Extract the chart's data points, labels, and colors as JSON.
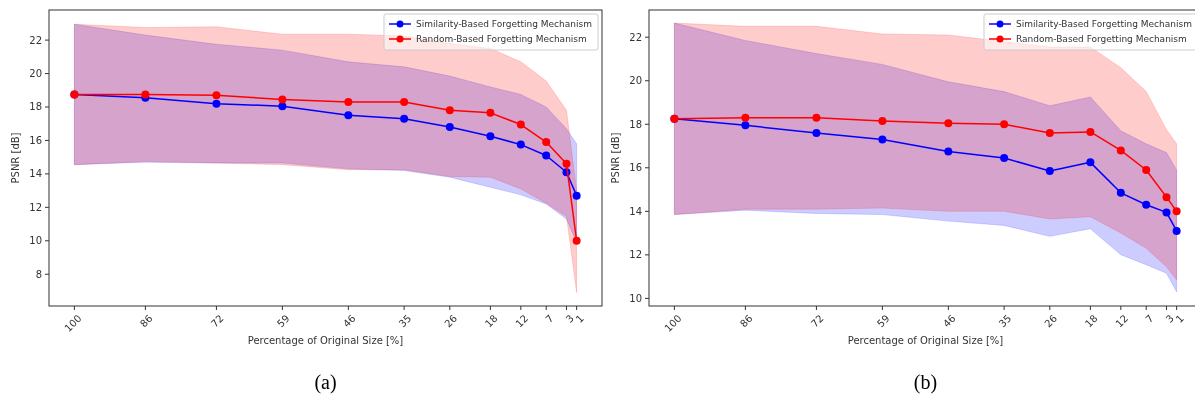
{
  "chart_data": [
    {
      "type": "line",
      "xlabel": "Percentage of Original Size [%]",
      "ylabel": "PSNR [dB]",
      "annotations": [
        "(a)"
      ],
      "x": [
        100,
        86,
        72,
        59,
        46,
        35,
        26,
        18,
        12,
        7,
        3,
        1
      ],
      "xlim": [
        105,
        -4
      ],
      "xticks": [
        100,
        86,
        72,
        59,
        46,
        35,
        26,
        18,
        12,
        7,
        3,
        1
      ],
      "ylim": [
        6.1,
        23.8
      ],
      "yticks": [
        8,
        10,
        12,
        14,
        16,
        18,
        20,
        22
      ],
      "legend": "top right",
      "marker": "circle",
      "grid": false,
      "series": [
        {
          "name": "Similarity-Based Forgetting Mechanism",
          "color": "#0000ff",
          "values": [
            18.75,
            18.55,
            18.2,
            18.05,
            17.5,
            17.3,
            16.8,
            16.25,
            15.75,
            15.1,
            14.1,
            12.7
          ],
          "lower": [
            14.55,
            14.7,
            14.65,
            14.65,
            14.3,
            14.2,
            13.8,
            13.2,
            12.75,
            12.2,
            11.3,
            9.9
          ],
          "upper": [
            22.95,
            22.3,
            21.75,
            21.4,
            20.7,
            20.4,
            19.85,
            19.2,
            18.75,
            18.0,
            16.7,
            15.8
          ]
        },
        {
          "name": "Random-Based Forgetting Mechanism",
          "color": "#ff0000",
          "values": [
            18.75,
            18.75,
            18.7,
            18.45,
            18.3,
            18.3,
            17.8,
            17.65,
            16.95,
            15.9,
            14.6,
            10.0
          ],
          "lower": [
            14.55,
            14.75,
            14.65,
            14.55,
            14.25,
            14.25,
            13.85,
            13.8,
            13.1,
            12.25,
            11.45,
            6.9
          ],
          "upper": [
            22.95,
            22.75,
            22.8,
            22.35,
            22.35,
            22.25,
            21.8,
            21.5,
            20.7,
            19.55,
            17.8,
            13.0
          ]
        }
      ]
    },
    {
      "type": "line",
      "xlabel": "Percentage of Original Size [%]",
      "ylabel": "PSNR [dB]",
      "annotations": [
        "(b)"
      ],
      "x": [
        100,
        86,
        72,
        59,
        46,
        35,
        26,
        18,
        12,
        7,
        3,
        1
      ],
      "xlim": [
        105,
        -4
      ],
      "xticks": [
        100,
        86,
        72,
        59,
        46,
        35,
        26,
        18,
        12,
        7,
        3,
        1
      ],
      "ylim": [
        9.65,
        23.25
      ],
      "yticks": [
        10,
        12,
        14,
        16,
        18,
        20,
        22
      ],
      "legend": "top right",
      "marker": "circle",
      "grid": false,
      "series": [
        {
          "name": "Similarity-Based Forgetting Mechanism",
          "color": "#0000ff",
          "values": [
            18.25,
            17.95,
            17.6,
            17.3,
            16.75,
            16.45,
            15.85,
            16.25,
            14.85,
            14.3,
            13.95,
            13.1
          ],
          "lower": [
            13.85,
            14.05,
            13.9,
            13.85,
            13.55,
            13.35,
            12.85,
            13.2,
            12.0,
            11.55,
            11.15,
            10.3
          ],
          "upper": [
            22.65,
            21.85,
            21.25,
            20.75,
            19.95,
            19.5,
            18.85,
            19.25,
            17.7,
            17.1,
            16.7,
            15.9
          ]
        },
        {
          "name": "Random-Based Forgetting Mechanism",
          "color": "#ff0000",
          "values": [
            18.25,
            18.3,
            18.3,
            18.15,
            18.05,
            18.0,
            17.6,
            17.65,
            16.8,
            15.9,
            14.65,
            14.0
          ],
          "lower": [
            13.85,
            14.1,
            14.1,
            14.15,
            14.0,
            14.0,
            13.65,
            13.75,
            13.0,
            12.3,
            11.45,
            10.85
          ],
          "upper": [
            22.65,
            22.5,
            22.5,
            22.15,
            22.1,
            21.8,
            21.55,
            21.55,
            20.6,
            19.5,
            17.75,
            17.1
          ]
        }
      ]
    }
  ]
}
